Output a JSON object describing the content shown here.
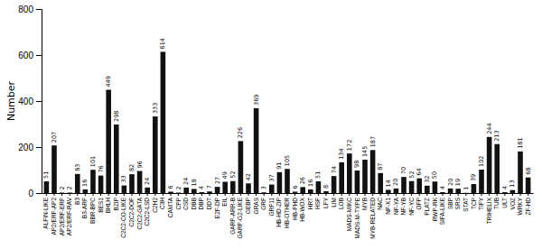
{
  "chart_data": {
    "type": "bar",
    "categories": [
      "ALFIN-LIKE",
      "AP2/ERF-AP2",
      "AP2/ERF-ERF",
      "AP2/ERF-RAV",
      "B3",
      "B3-ARF",
      "BBR-BPC",
      "BES1",
      "BHLH",
      "BZIP",
      "C2C2-CO-LIKE",
      "C2C2-DOF",
      "C2C2-GATA",
      "C2C2-LSD",
      "C2H2",
      "C3H",
      "CAMTA",
      "CPP",
      "CSD",
      "DBB",
      "DBP",
      "DDT",
      "E2F-DP",
      "EIL",
      "GARP-ARR-B",
      "GARP-G2-LIKE",
      "GEBP",
      "GRAS",
      "GRF",
      "GRF11",
      "HB-HD-ZIP",
      "HB-OTHER",
      "HB-PHD",
      "HB-WOX",
      "HRT",
      "HSF",
      "LFY",
      "LIM",
      "LOB",
      "MADS-MIKC",
      "MADS-M-TYPE",
      "MYB",
      "MYB-RELATED",
      "NAC",
      "NF-X1",
      "NF-YA",
      "NF-YB",
      "NF-YC",
      "OFP",
      "PLATZ",
      "RWP-RK",
      "SIFA-LIKE",
      "SBP",
      "SRS",
      "STAT",
      "TCP",
      "TIFY",
      "TRIHELIX",
      "TUB",
      "ULT",
      "VOZ",
      "WRKY",
      "ZF-HD"
    ],
    "values": [
      51,
      207,
      2,
      2,
      83,
      16,
      101,
      76,
      449,
      298,
      33,
      82,
      96,
      24,
      333,
      614,
      6,
      2,
      24,
      18,
      4,
      7,
      27,
      49,
      52,
      226,
      42,
      369,
      3,
      37,
      91,
      105,
      6,
      26,
      16,
      51,
      8,
      74,
      134,
      172,
      98,
      145,
      187,
      87,
      14,
      20,
      70,
      52,
      64,
      32,
      50,
      4,
      20,
      19,
      1,
      39,
      102,
      244,
      213,
      4,
      13,
      181,
      68
    ],
    "color": "#111111",
    "ylabel": "Number",
    "ylim": [
      0,
      800
    ],
    "yticks": [
      0,
      200,
      400,
      600,
      800
    ],
    "data_labels": true,
    "grid": false
  }
}
